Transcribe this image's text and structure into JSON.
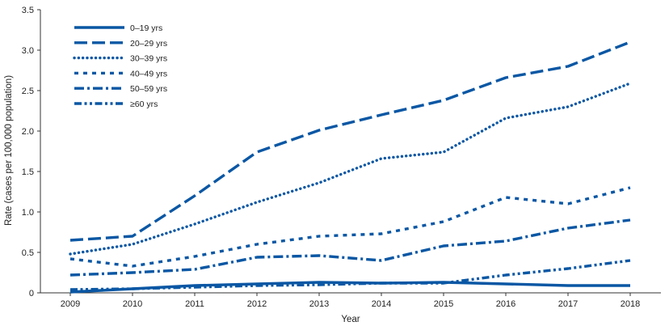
{
  "chart_data": {
    "type": "line",
    "xlabel": "Year",
    "ylabel": "Rate (cases per 100,000 population)",
    "ylim": [
      0,
      3.5
    ],
    "yticks": [
      "0",
      "0.5",
      "1.0",
      "1.5",
      "2.0",
      "2.5",
      "3.0",
      "3.5"
    ],
    "ytick_values": [
      0,
      0.5,
      1.0,
      1.5,
      2.0,
      2.5,
      3.0,
      3.5
    ],
    "x": [
      "2009",
      "2010",
      "2011",
      "2012",
      "2013",
      "2014",
      "2015",
      "2016",
      "2017",
      "2018"
    ],
    "grid": false,
    "legend_position": "top-left",
    "line_color": "#0a57a4",
    "series": [
      {
        "name": "0–19 yrs",
        "style": "solid",
        "values": [
          0.01,
          0.05,
          0.09,
          0.11,
          0.13,
          0.12,
          0.13,
          0.11,
          0.09,
          0.09
        ]
      },
      {
        "name": "20–29 yrs",
        "style": "long-dash",
        "values": [
          0.65,
          0.7,
          1.2,
          1.74,
          2.01,
          2.2,
          2.38,
          2.66,
          2.8,
          3.1
        ]
      },
      {
        "name": "30–39 yrs",
        "style": "dotted",
        "values": [
          0.48,
          0.6,
          0.85,
          1.12,
          1.36,
          1.66,
          1.74,
          2.16,
          2.3,
          2.59
        ]
      },
      {
        "name": "40–49 yrs",
        "style": "short-dash",
        "values": [
          0.42,
          0.33,
          0.45,
          0.6,
          0.7,
          0.73,
          0.88,
          1.18,
          1.1,
          1.3
        ]
      },
      {
        "name": "50–59 yrs",
        "style": "dash-dot",
        "values": [
          0.22,
          0.25,
          0.29,
          0.44,
          0.46,
          0.4,
          0.58,
          0.64,
          0.8,
          0.9
        ]
      },
      {
        "name": "≥60 yrs",
        "style": "dash-dot-dot",
        "values": [
          0.04,
          0.05,
          0.07,
          0.09,
          0.1,
          0.12,
          0.12,
          0.22,
          0.3,
          0.4
        ]
      }
    ]
  }
}
